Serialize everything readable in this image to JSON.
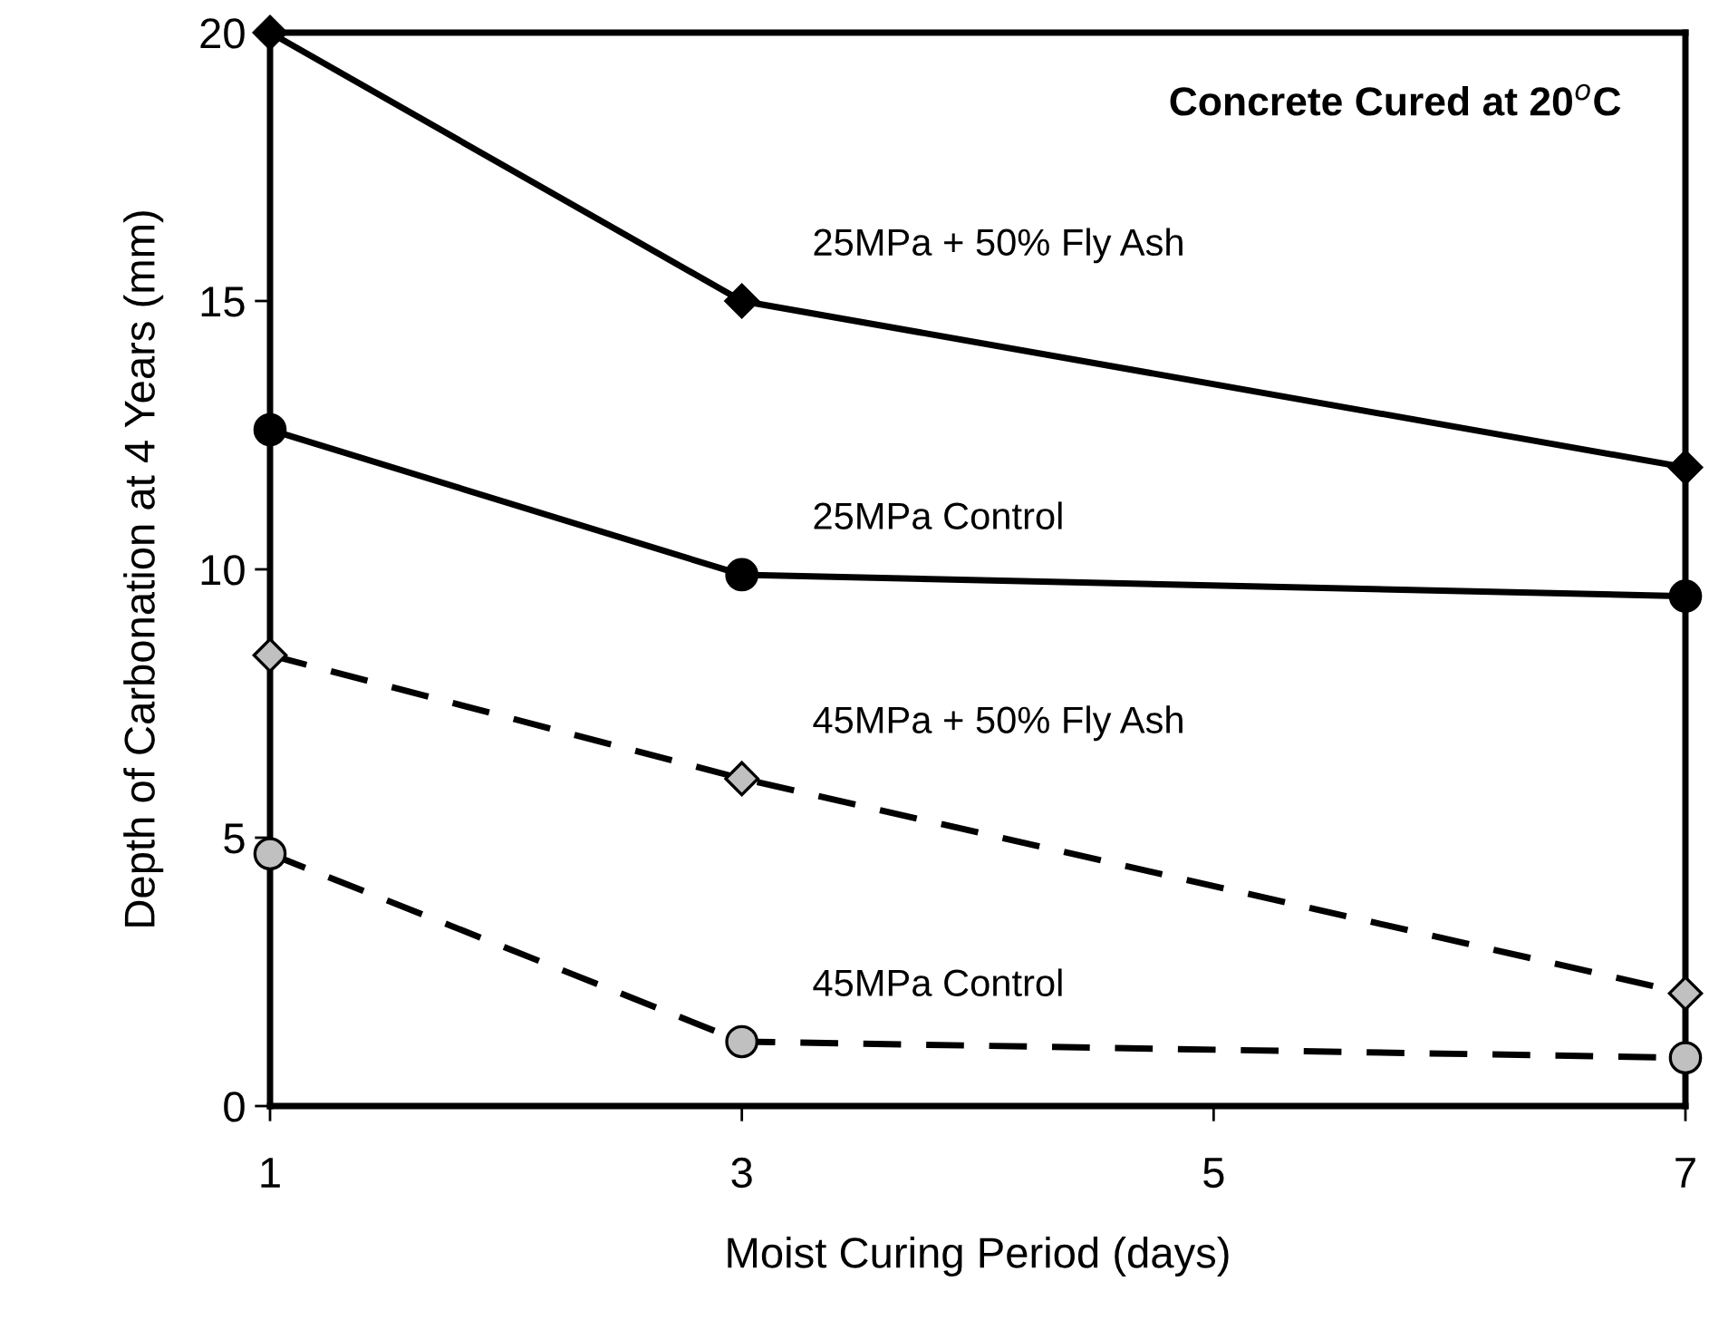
{
  "chart_data": {
    "type": "line",
    "title": "Concrete Cured at 20$^{o}$C",
    "xlabel": "Moist Curing Period (days)",
    "ylabel": "Depth of Carbonation at 4 Years (mm)",
    "x": [
      1,
      3,
      7
    ],
    "series": [
      {
        "name": "25MPa + 50% Fly Ash",
        "color": "#000000",
        "marker": "diamond",
        "line_style": "solid",
        "values": [
          20,
          15,
          11.9
        ]
      },
      {
        "name": "25MPa Control",
        "color": "#000000",
        "marker": "circle",
        "line_style": "solid",
        "values": [
          12.6,
          9.9,
          9.5
        ]
      },
      {
        "name": "45MPa + 50% Fly Ash",
        "color": "#c0c0c0",
        "marker": "diamond",
        "line_style": "dashed",
        "values": [
          8.4,
          6.1,
          2.1
        ]
      },
      {
        "name": "45MPa Control",
        "color": "#c0c0c0",
        "marker": "circle",
        "line_style": "dashed",
        "values": [
          4.7,
          1.2,
          0.9
        ]
      }
    ],
    "xlim": [
      1,
      7
    ],
    "xticks": [
      1,
      3,
      5,
      7
    ],
    "ylim": [
      0,
      20
    ],
    "yticks": [
      0,
      5,
      10,
      15,
      20
    ],
    "grid": false,
    "legend": false
  }
}
